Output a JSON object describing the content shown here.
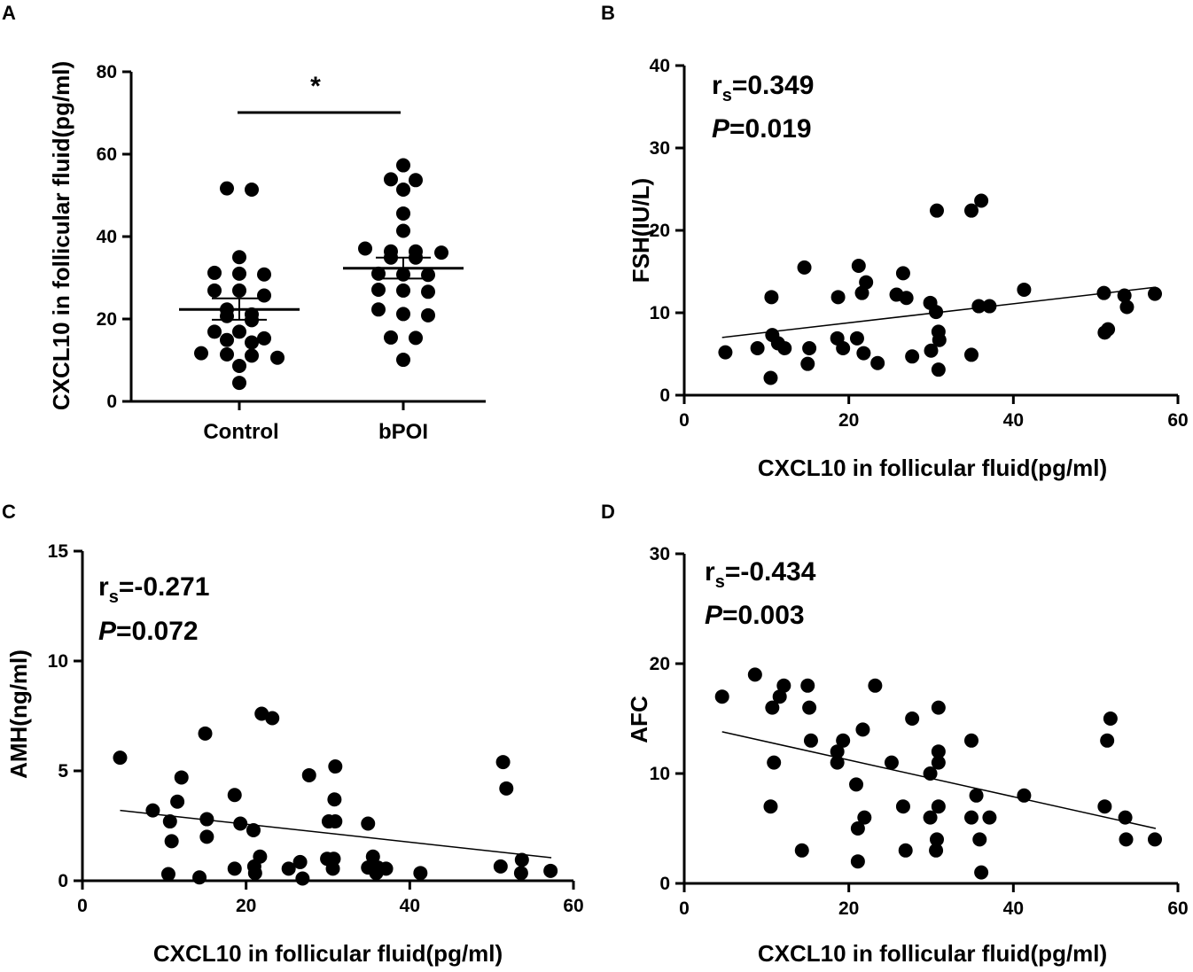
{
  "chart_data": [
    {
      "panel": "A",
      "type": "scatter",
      "subtype": "dot-plot",
      "ylabel": "CXCL10 in follicular fluid(pg/ml)",
      "ylim": [
        0,
        80
      ],
      "yticks": [
        "0",
        "20",
        "40",
        "60",
        "80"
      ],
      "categories": [
        "Control",
        "bPOI"
      ],
      "significance": "*",
      "groups": [
        {
          "name": "Control",
          "mean": 22.3,
          "sem_low": 19.8,
          "sem_high": 25.0,
          "values": [
            51.7,
            51.4,
            35.0,
            31.2,
            31.0,
            30.8,
            26.9,
            26.9,
            25.7,
            22.3,
            21.1,
            20.7,
            19.7,
            16.9,
            16.9,
            15.3,
            14.9,
            14.3,
            11.7,
            11.4,
            11.1,
            10.6,
            8.6,
            4.5
          ]
        },
        {
          "name": "bPOI",
          "mean": 32.3,
          "sem_low": 29.8,
          "sem_high": 34.9,
          "values": [
            57.3,
            53.9,
            53.7,
            51.4,
            45.6,
            41.4,
            37.1,
            36.4,
            36.4,
            36.1,
            34.9,
            34.9,
            31.0,
            30.8,
            30.7,
            27.1,
            26.9,
            26.6,
            22.3,
            21.2,
            20.9,
            15.5,
            15.4,
            10.1
          ]
        }
      ]
    },
    {
      "panel": "B",
      "type": "scatter",
      "xlabel": "CXCL10 in follicular fluid(pg/ml)",
      "ylabel": "FSH(IU/L)",
      "xlim": [
        0,
        60
      ],
      "ylim": [
        0,
        40
      ],
      "xticks": [
        "0",
        "20",
        "40",
        "60"
      ],
      "yticks": [
        "0",
        "10",
        "20",
        "30",
        "40"
      ],
      "stat_r": "=0.349",
      "stat_p": "=0.019",
      "fit": [
        [
          4.6,
          7.0
        ],
        [
          57.3,
          13.1
        ]
      ],
      "points": [
        [
          5.0,
          5.2
        ],
        [
          8.9,
          5.7
        ],
        [
          10.5,
          2.1
        ],
        [
          10.6,
          11.9
        ],
        [
          10.7,
          7.3
        ],
        [
          11.4,
          6.3
        ],
        [
          12.2,
          5.7
        ],
        [
          14.6,
          15.5
        ],
        [
          15.0,
          3.8
        ],
        [
          15.2,
          5.7
        ],
        [
          18.6,
          6.9
        ],
        [
          18.7,
          11.9
        ],
        [
          19.3,
          5.7
        ],
        [
          21.0,
          6.9
        ],
        [
          21.2,
          15.7
        ],
        [
          21.6,
          12.4
        ],
        [
          21.8,
          5.1
        ],
        [
          22.1,
          13.7
        ],
        [
          23.5,
          3.9
        ],
        [
          25.8,
          12.2
        ],
        [
          26.6,
          14.8
        ],
        [
          27.0,
          11.8
        ],
        [
          27.7,
          4.7
        ],
        [
          29.9,
          11.2
        ],
        [
          30.0,
          5.4
        ],
        [
          30.6,
          10.1
        ],
        [
          30.7,
          22.4
        ],
        [
          30.9,
          3.1
        ],
        [
          30.9,
          7.7
        ],
        [
          31.0,
          6.7
        ],
        [
          34.9,
          4.9
        ],
        [
          34.9,
          22.4
        ],
        [
          35.8,
          10.8
        ],
        [
          36.1,
          23.6
        ],
        [
          37.1,
          10.8
        ],
        [
          41.3,
          12.8
        ],
        [
          51.0,
          12.4
        ],
        [
          51.1,
          7.6
        ],
        [
          51.5,
          8.0
        ],
        [
          53.5,
          12.1
        ],
        [
          53.8,
          10.7
        ],
        [
          57.2,
          12.3
        ]
      ]
    },
    {
      "panel": "C",
      "type": "scatter",
      "xlabel": "CXCL10 in follicular fluid(pg/ml)",
      "ylabel": "AMH(ng/ml)",
      "xlim": [
        0,
        60
      ],
      "ylim": [
        0,
        15
      ],
      "xticks": [
        "0",
        "20",
        "40",
        "60"
      ],
      "yticks": [
        "0",
        "5",
        "10",
        "15"
      ],
      "stat_r": "=-0.271",
      "stat_p": "=0.072",
      "fit": [
        [
          4.6,
          3.2
        ],
        [
          57.3,
          1.05
        ]
      ],
      "points": [
        [
          4.6,
          5.6
        ],
        [
          8.6,
          3.2
        ],
        [
          10.5,
          0.3
        ],
        [
          10.7,
          2.7
        ],
        [
          10.9,
          1.8
        ],
        [
          11.6,
          3.6
        ],
        [
          12.1,
          4.7
        ],
        [
          14.3,
          0.15
        ],
        [
          15.0,
          6.7
        ],
        [
          15.2,
          2.8
        ],
        [
          15.2,
          2.0
        ],
        [
          18.6,
          3.9
        ],
        [
          18.6,
          0.55
        ],
        [
          19.3,
          2.6
        ],
        [
          20.9,
          2.3
        ],
        [
          21.0,
          0.65
        ],
        [
          21.1,
          0.35
        ],
        [
          21.7,
          1.1
        ],
        [
          21.9,
          7.6
        ],
        [
          23.2,
          7.4
        ],
        [
          25.2,
          0.55
        ],
        [
          26.6,
          0.85
        ],
        [
          26.9,
          0.1
        ],
        [
          27.7,
          4.8
        ],
        [
          29.9,
          1.0
        ],
        [
          30.1,
          2.7
        ],
        [
          30.6,
          0.55
        ],
        [
          30.7,
          1.0
        ],
        [
          30.8,
          3.7
        ],
        [
          30.9,
          5.2
        ],
        [
          30.9,
          2.7
        ],
        [
          34.9,
          0.6
        ],
        [
          34.9,
          2.6
        ],
        [
          35.5,
          1.1
        ],
        [
          35.9,
          0.35
        ],
        [
          36.1,
          0.6
        ],
        [
          37.1,
          0.55
        ],
        [
          41.3,
          0.35
        ],
        [
          51.1,
          0.65
        ],
        [
          51.4,
          5.4
        ],
        [
          51.8,
          4.2
        ],
        [
          53.6,
          0.35
        ],
        [
          53.7,
          0.95
        ],
        [
          57.2,
          0.45
        ]
      ]
    },
    {
      "panel": "D",
      "type": "scatter",
      "xlabel": "CXCL10 in follicular fluid(pg/ml)",
      "ylabel": "AFC",
      "xlim": [
        0,
        60
      ],
      "ylim": [
        0,
        30
      ],
      "xticks": [
        "0",
        "20",
        "40",
        "60"
      ],
      "yticks": [
        "0",
        "10",
        "20",
        "30"
      ],
      "stat_r": "=-0.434",
      "stat_p": "=0.003",
      "fit": [
        [
          4.6,
          13.8
        ],
        [
          57.3,
          5.0
        ]
      ],
      "points": [
        [
          4.6,
          17
        ],
        [
          8.6,
          19
        ],
        [
          10.5,
          7
        ],
        [
          10.7,
          16
        ],
        [
          10.9,
          11
        ],
        [
          11.6,
          17
        ],
        [
          12.1,
          18
        ],
        [
          14.3,
          3
        ],
        [
          15.0,
          18
        ],
        [
          15.2,
          16
        ],
        [
          15.4,
          13
        ],
        [
          18.6,
          12
        ],
        [
          18.6,
          11
        ],
        [
          19.3,
          13
        ],
        [
          20.9,
          9
        ],
        [
          21.1,
          5
        ],
        [
          21.1,
          2
        ],
        [
          21.7,
          14
        ],
        [
          21.9,
          6
        ],
        [
          23.2,
          18
        ],
        [
          25.2,
          11
        ],
        [
          26.6,
          7
        ],
        [
          26.9,
          3
        ],
        [
          27.7,
          15
        ],
        [
          29.9,
          6
        ],
        [
          29.9,
          10
        ],
        [
          30.6,
          3
        ],
        [
          30.7,
          4
        ],
        [
          30.9,
          7
        ],
        [
          30.9,
          11
        ],
        [
          30.9,
          12
        ],
        [
          30.9,
          16
        ],
        [
          34.9,
          6
        ],
        [
          34.9,
          13
        ],
        [
          35.5,
          8
        ],
        [
          35.9,
          4
        ],
        [
          36.1,
          1
        ],
        [
          37.1,
          6
        ],
        [
          41.3,
          8
        ],
        [
          51.1,
          7
        ],
        [
          51.4,
          13
        ],
        [
          51.8,
          15
        ],
        [
          53.6,
          6
        ],
        [
          53.7,
          4
        ],
        [
          57.2,
          4
        ]
      ]
    }
  ]
}
